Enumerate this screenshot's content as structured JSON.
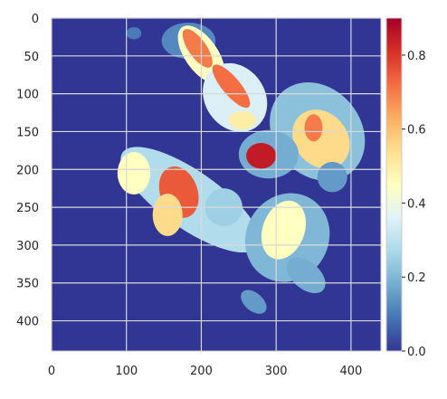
{
  "chart_data": {
    "type": "heatmap",
    "title": "",
    "xlabel": "",
    "ylabel": "",
    "xlim": [
      0,
      440
    ],
    "ylim": [
      440,
      0
    ],
    "x_ticks": [
      0,
      100,
      200,
      300,
      400
    ],
    "y_ticks": [
      0,
      50,
      100,
      150,
      200,
      250,
      300,
      350,
      400
    ],
    "x_tick_labels": [
      "0",
      "100",
      "200",
      "300",
      "400"
    ],
    "y_tick_labels": [
      "0",
      "50",
      "100",
      "150",
      "200",
      "250",
      "300",
      "350",
      "400"
    ],
    "grid": true,
    "colorbar": {
      "min": 0.0,
      "max": 0.9,
      "ticks": [
        0.0,
        0.2,
        0.4,
        0.6,
        0.8
      ],
      "tick_labels": [
        "0.0",
        "0.2",
        "0.4",
        "0.6",
        "0.8"
      ],
      "colormap": "RdYlBu_r",
      "colormap_stops": [
        "#313695",
        "#4575b4",
        "#74add1",
        "#abd9e9",
        "#e0f3f8",
        "#ffffbf",
        "#fee090",
        "#fdae61",
        "#f46d43",
        "#d73027",
        "#a50026"
      ]
    },
    "background_value": 0.0,
    "regions": [
      {
        "id": "r1",
        "level": 0.12,
        "cx": 183,
        "cy": 30,
        "rx": 36,
        "ry": 24,
        "rot": 0
      },
      {
        "id": "r2",
        "level": 0.45,
        "cx": 200,
        "cy": 48,
        "rx": 22,
        "ry": 44,
        "rot": -35
      },
      {
        "id": "r3",
        "level": 0.7,
        "cx": 195,
        "cy": 40,
        "rx": 12,
        "ry": 30,
        "rot": -35
      },
      {
        "id": "r4",
        "level": 0.35,
        "cx": 245,
        "cy": 105,
        "rx": 40,
        "ry": 48,
        "rot": -35
      },
      {
        "id": "r5",
        "level": 0.72,
        "cx": 240,
        "cy": 90,
        "rx": 12,
        "ry": 36,
        "rot": -40
      },
      {
        "id": "r6",
        "level": 0.22,
        "cx": 355,
        "cy": 150,
        "rx": 58,
        "ry": 70,
        "rot": -40
      },
      {
        "id": "r7",
        "level": 0.55,
        "cx": 360,
        "cy": 160,
        "rx": 35,
        "ry": 42,
        "rot": -40
      },
      {
        "id": "r8",
        "level": 0.7,
        "cx": 350,
        "cy": 145,
        "rx": 12,
        "ry": 18,
        "rot": 0
      },
      {
        "id": "r9",
        "level": 0.18,
        "cx": 290,
        "cy": 180,
        "rx": 40,
        "ry": 32,
        "rot": 0
      },
      {
        "id": "r10",
        "level": 0.85,
        "cx": 280,
        "cy": 182,
        "rx": 20,
        "ry": 17,
        "rot": 0
      },
      {
        "id": "r11",
        "level": 0.28,
        "cx": 185,
        "cy": 240,
        "rx": 110,
        "ry": 38,
        "rot": 35
      },
      {
        "id": "r12",
        "level": 0.45,
        "cx": 110,
        "cy": 205,
        "rx": 22,
        "ry": 28,
        "rot": 0
      },
      {
        "id": "r13",
        "level": 0.75,
        "cx": 170,
        "cy": 230,
        "rx": 25,
        "ry": 35,
        "rot": -20
      },
      {
        "id": "r14",
        "level": 0.55,
        "cx": 155,
        "cy": 260,
        "rx": 20,
        "ry": 28,
        "rot": 0
      },
      {
        "id": "r15",
        "level": 0.25,
        "cx": 230,
        "cy": 250,
        "rx": 25,
        "ry": 25,
        "rot": 0
      },
      {
        "id": "r16",
        "level": 0.2,
        "cx": 315,
        "cy": 290,
        "rx": 55,
        "ry": 60,
        "rot": 30
      },
      {
        "id": "r17",
        "level": 0.45,
        "cx": 310,
        "cy": 280,
        "rx": 28,
        "ry": 40,
        "rot": 20
      },
      {
        "id": "r18",
        "level": 0.5,
        "cx": 255,
        "cy": 135,
        "rx": 18,
        "ry": 12,
        "rot": 0
      },
      {
        "id": "r19",
        "level": 0.15,
        "cx": 270,
        "cy": 375,
        "rx": 20,
        "ry": 12,
        "rot": 40
      },
      {
        "id": "r20",
        "level": 0.18,
        "cx": 340,
        "cy": 340,
        "rx": 30,
        "ry": 18,
        "rot": 40
      },
      {
        "id": "r21",
        "level": 0.15,
        "cx": 375,
        "cy": 210,
        "rx": 20,
        "ry": 20,
        "rot": 0
      },
      {
        "id": "r22",
        "level": 0.1,
        "cx": 110,
        "cy": 20,
        "rx": 10,
        "ry": 8,
        "rot": 0
      }
    ]
  }
}
